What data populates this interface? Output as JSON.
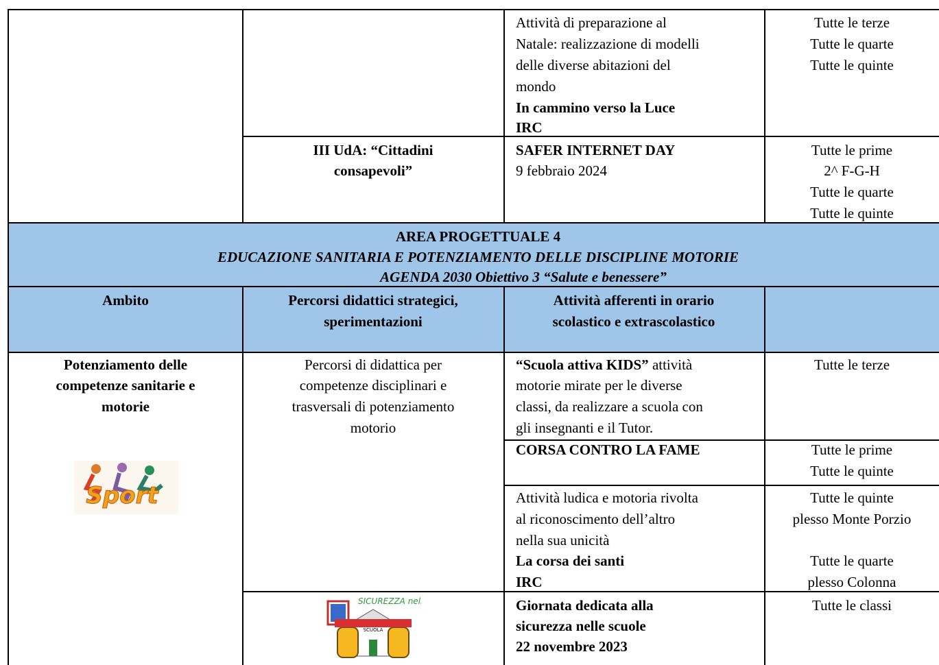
{
  "prev": {
    "row1": {
      "activity": [
        "Attività di preparazione al",
        "Natale: realizzazione di modelli",
        "delle diverse abitazioni del",
        "mondo"
      ],
      "activity_bold": [
        "In cammino verso la Luce",
        "IRC"
      ],
      "classes": [
        "Tutte le terze",
        "Tutte le quarte",
        "Tutte le quinte"
      ]
    },
    "row2": {
      "path": [
        "III UdA: “Cittadini",
        "consapevoli”"
      ],
      "activity_bold": [
        "SAFER INTERNET DAY"
      ],
      "activity": [
        "9 febbraio  2024"
      ],
      "classes": [
        "Tutte le prime",
        "2^ F-G-H",
        "Tutte le quarte",
        "Tutte le quinte"
      ]
    }
  },
  "area": {
    "title": "AREA PROGETTUALE 4",
    "subtitle": "EDUCAZIONE SANITARIA E POTENZIAMENTO DELLE DISCIPLINE MOTORIE",
    "goal": "AGENDA 2030 Obiettivo 3 “Salute e benessere”"
  },
  "header": [
    [
      "Ambito"
    ],
    [
      "Percorsi didattici strategici,",
      "sperimentazioni"
    ],
    [
      "Attività afferenti in orario",
      "scolastico e  extrascolastico"
    ]
  ],
  "section": {
    "ambito": [
      "Potenziamento delle",
      "competenze sanitarie e",
      "motorie"
    ],
    "logo_sport": "Sport",
    "path": [
      "Percorsi di didattica per",
      "competenze disciplinari e",
      "trasversali di potenziamento",
      "motorio"
    ],
    "logo_safety": [
      "SICUREZZA nella",
      "SCUOLA"
    ],
    "rows": [
      {
        "activity_bold": [
          "“Scuola attiva KIDS”"
        ],
        "activity": [
          " attività",
          "motorie mirate per le diverse",
          "classi, da realizzare a scuola con",
          "gli insegnanti e il Tutor."
        ],
        "classes": [
          "Tutte le terze"
        ]
      },
      {
        "activity_bold": [
          "CORSA CONTRO LA FAME"
        ],
        "classes": [
          "Tutte le prime",
          "Tutte le quinte"
        ]
      },
      {
        "activity": [
          "Attività ludica e motoria rivolta",
          "al riconoscimento dell’altro",
          "nella sua unicità"
        ],
        "activity_bold": [
          "La corsa dei santi",
          "IRC"
        ],
        "classes": [
          "Tutte le quinte",
          "plesso Monte Porzio",
          "Tutte le quarte",
          "plesso Colonna"
        ]
      },
      {
        "activity_bold": [
          "Giornata dedicata alla",
          "sicurezza nelle scuole",
          "22 novembre 2023"
        ],
        "classes": [
          "Tutte le classi"
        ]
      }
    ]
  }
}
